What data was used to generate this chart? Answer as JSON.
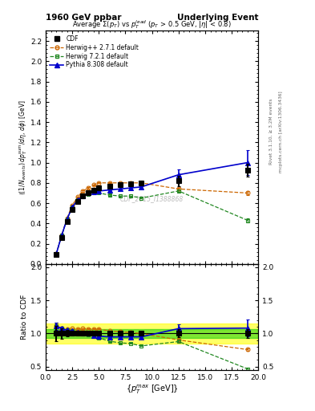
{
  "title_left": "1960 GeV ppbar",
  "title_right": "Underlying Event",
  "plot_title": "Average $\\Sigma(p_T)$ vs $p_T^{lead}$ ($p_T$ > 0.5 GeV, $|\\eta|$ < 0.8)",
  "watermark": "CDF_2015_I1388868",
  "xlabel": "$\\{p_T^{max}\\}$ [GeV]",
  "ylabel": "$\\langle(1/N_{events})\\,dp_T^{sum}/d\\eta,\\,d\\phi\\rangle$ [GeV]",
  "ylabel_ratio": "Ratio to CDF",
  "right_label1": "Rivet 3.1.10, ≥ 3.2M events",
  "right_label2": "mcplots.cern.ch [arXiv:1306.3436]",
  "cdf_x": [
    1.0,
    1.5,
    2.0,
    2.5,
    3.0,
    3.5,
    4.0,
    4.5,
    5.0,
    6.0,
    7.0,
    8.0,
    9.0,
    12.5,
    19.0
  ],
  "cdf_y": [
    0.09,
    0.26,
    0.42,
    0.54,
    0.62,
    0.67,
    0.7,
    0.73,
    0.75,
    0.77,
    0.78,
    0.79,
    0.8,
    0.82,
    0.925
  ],
  "cdf_yerr": [
    0.01,
    0.02,
    0.02,
    0.02,
    0.02,
    0.02,
    0.02,
    0.02,
    0.02,
    0.02,
    0.02,
    0.02,
    0.02,
    0.05,
    0.06
  ],
  "hw271_x": [
    1.0,
    1.5,
    2.0,
    2.5,
    3.0,
    3.5,
    4.0,
    4.5,
    5.0,
    6.0,
    7.0,
    8.0,
    9.0,
    12.5,
    19.0
  ],
  "hw271_y": [
    0.1,
    0.28,
    0.45,
    0.58,
    0.66,
    0.72,
    0.75,
    0.78,
    0.8,
    0.8,
    0.8,
    0.8,
    0.8,
    0.74,
    0.7
  ],
  "hw271_yerr": [
    0.005,
    0.005,
    0.005,
    0.005,
    0.005,
    0.005,
    0.005,
    0.005,
    0.005,
    0.005,
    0.005,
    0.005,
    0.005,
    0.01,
    0.02
  ],
  "hw721_x": [
    1.0,
    1.5,
    2.0,
    2.5,
    3.0,
    3.5,
    4.0,
    4.5,
    5.0,
    6.0,
    7.0,
    8.0,
    9.0,
    12.5,
    19.0
  ],
  "hw721_y": [
    0.1,
    0.28,
    0.44,
    0.56,
    0.63,
    0.67,
    0.69,
    0.7,
    0.7,
    0.68,
    0.67,
    0.67,
    0.65,
    0.72,
    0.43
  ],
  "hw721_yerr": [
    0.005,
    0.005,
    0.005,
    0.005,
    0.005,
    0.005,
    0.005,
    0.005,
    0.005,
    0.005,
    0.005,
    0.005,
    0.005,
    0.01,
    0.02
  ],
  "py8_x": [
    1.0,
    1.5,
    2.0,
    2.5,
    3.0,
    3.5,
    4.0,
    4.5,
    5.0,
    6.0,
    7.0,
    8.0,
    9.0,
    12.5,
    19.0
  ],
  "py8_y": [
    0.1,
    0.28,
    0.44,
    0.56,
    0.63,
    0.67,
    0.7,
    0.71,
    0.72,
    0.73,
    0.74,
    0.75,
    0.76,
    0.88,
    1.0
  ],
  "py8_yerr": [
    0.005,
    0.005,
    0.005,
    0.005,
    0.005,
    0.005,
    0.005,
    0.005,
    0.005,
    0.005,
    0.005,
    0.005,
    0.01,
    0.05,
    0.12
  ],
  "cdf_color": "#000000",
  "hw271_color": "#cc6600",
  "hw721_color": "#228822",
  "py8_color": "#0000cc",
  "band_yellow": "#ffff00",
  "band_green": "#00cc00",
  "xlim": [
    0,
    20
  ],
  "ylim_main": [
    0.0,
    2.3
  ],
  "ylim_ratio": [
    0.45,
    2.05
  ],
  "yticks_main": [
    0.0,
    0.2,
    0.4,
    0.6,
    0.8,
    1.0,
    1.2,
    1.4,
    1.6,
    1.8,
    2.0,
    2.2
  ],
  "yticks_ratio": [
    0.5,
    1.0,
    1.5,
    2.0
  ],
  "legend_labels": [
    "CDF",
    "Herwig++ 2.7.1 default",
    "Herwig 7.2.1 default",
    "Pythia 8.308 default"
  ]
}
